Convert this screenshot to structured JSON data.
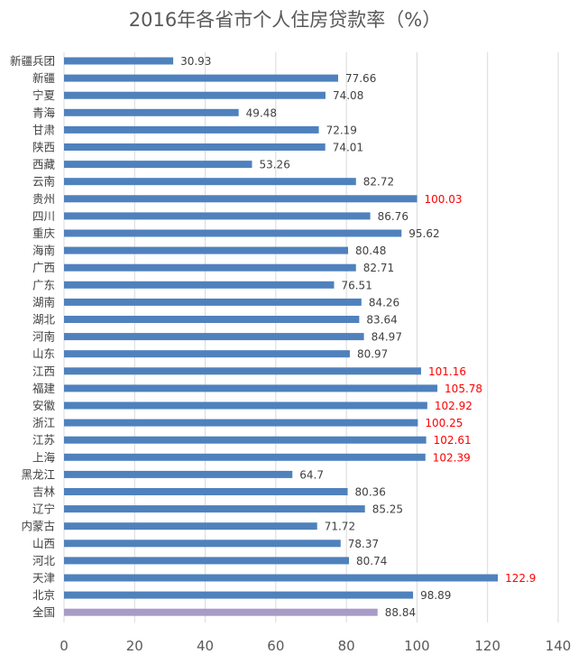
{
  "chart_data": {
    "type": "bar",
    "orientation": "horizontal",
    "title": "2016年各省市个人住房贷款率（%）",
    "xlabel": "",
    "ylabel": "",
    "xlim": [
      0,
      140
    ],
    "x_ticks": [
      0,
      20,
      40,
      60,
      80,
      100,
      120,
      140
    ],
    "grid": true,
    "legend": "none",
    "colors": {
      "bar": "#4f81bd",
      "highlight_bar": "#a99bc8",
      "label_normal": "#404040",
      "label_over_100": "#ff0000"
    },
    "categories": [
      "新疆兵团",
      "新疆",
      "宁夏",
      "青海",
      "甘肃",
      "陕西",
      "西藏",
      "云南",
      "贵州",
      "四川",
      "重庆",
      "海南",
      "广西",
      "广东",
      "湖南",
      "湖北",
      "河南",
      "山东",
      "江西",
      "福建",
      "安徽",
      "浙江",
      "江苏",
      "上海",
      "黑龙江",
      "吉林",
      "辽宁",
      "内蒙古",
      "山西",
      "河北",
      "天津",
      "北京",
      "全国"
    ],
    "values": [
      30.93,
      77.66,
      74.08,
      49.48,
      72.19,
      74.01,
      53.26,
      82.72,
      100.03,
      86.76,
      95.62,
      80.48,
      82.71,
      76.51,
      84.26,
      83.64,
      84.97,
      80.97,
      101.16,
      105.78,
      102.92,
      100.25,
      102.61,
      102.39,
      64.7,
      80.36,
      85.25,
      71.72,
      78.37,
      80.74,
      122.9,
      98.89,
      88.84
    ],
    "value_labels": [
      "30.93",
      "77.66",
      "74.08",
      "49.48",
      "72.19",
      "74.01",
      "53.26",
      "82.72",
      "100.03",
      "86.76",
      "95.62",
      "80.48",
      "82.71",
      "76.51",
      "84.26",
      "83.64",
      "84.97",
      "80.97",
      "101.16",
      "105.78",
      "102.92",
      "100.25",
      "102.61",
      "102.39",
      "64.7",
      "80.36",
      "85.25",
      "71.72",
      "78.37",
      "80.74",
      "122.9",
      "98.89",
      "88.84"
    ],
    "highlight_category": "全国"
  }
}
